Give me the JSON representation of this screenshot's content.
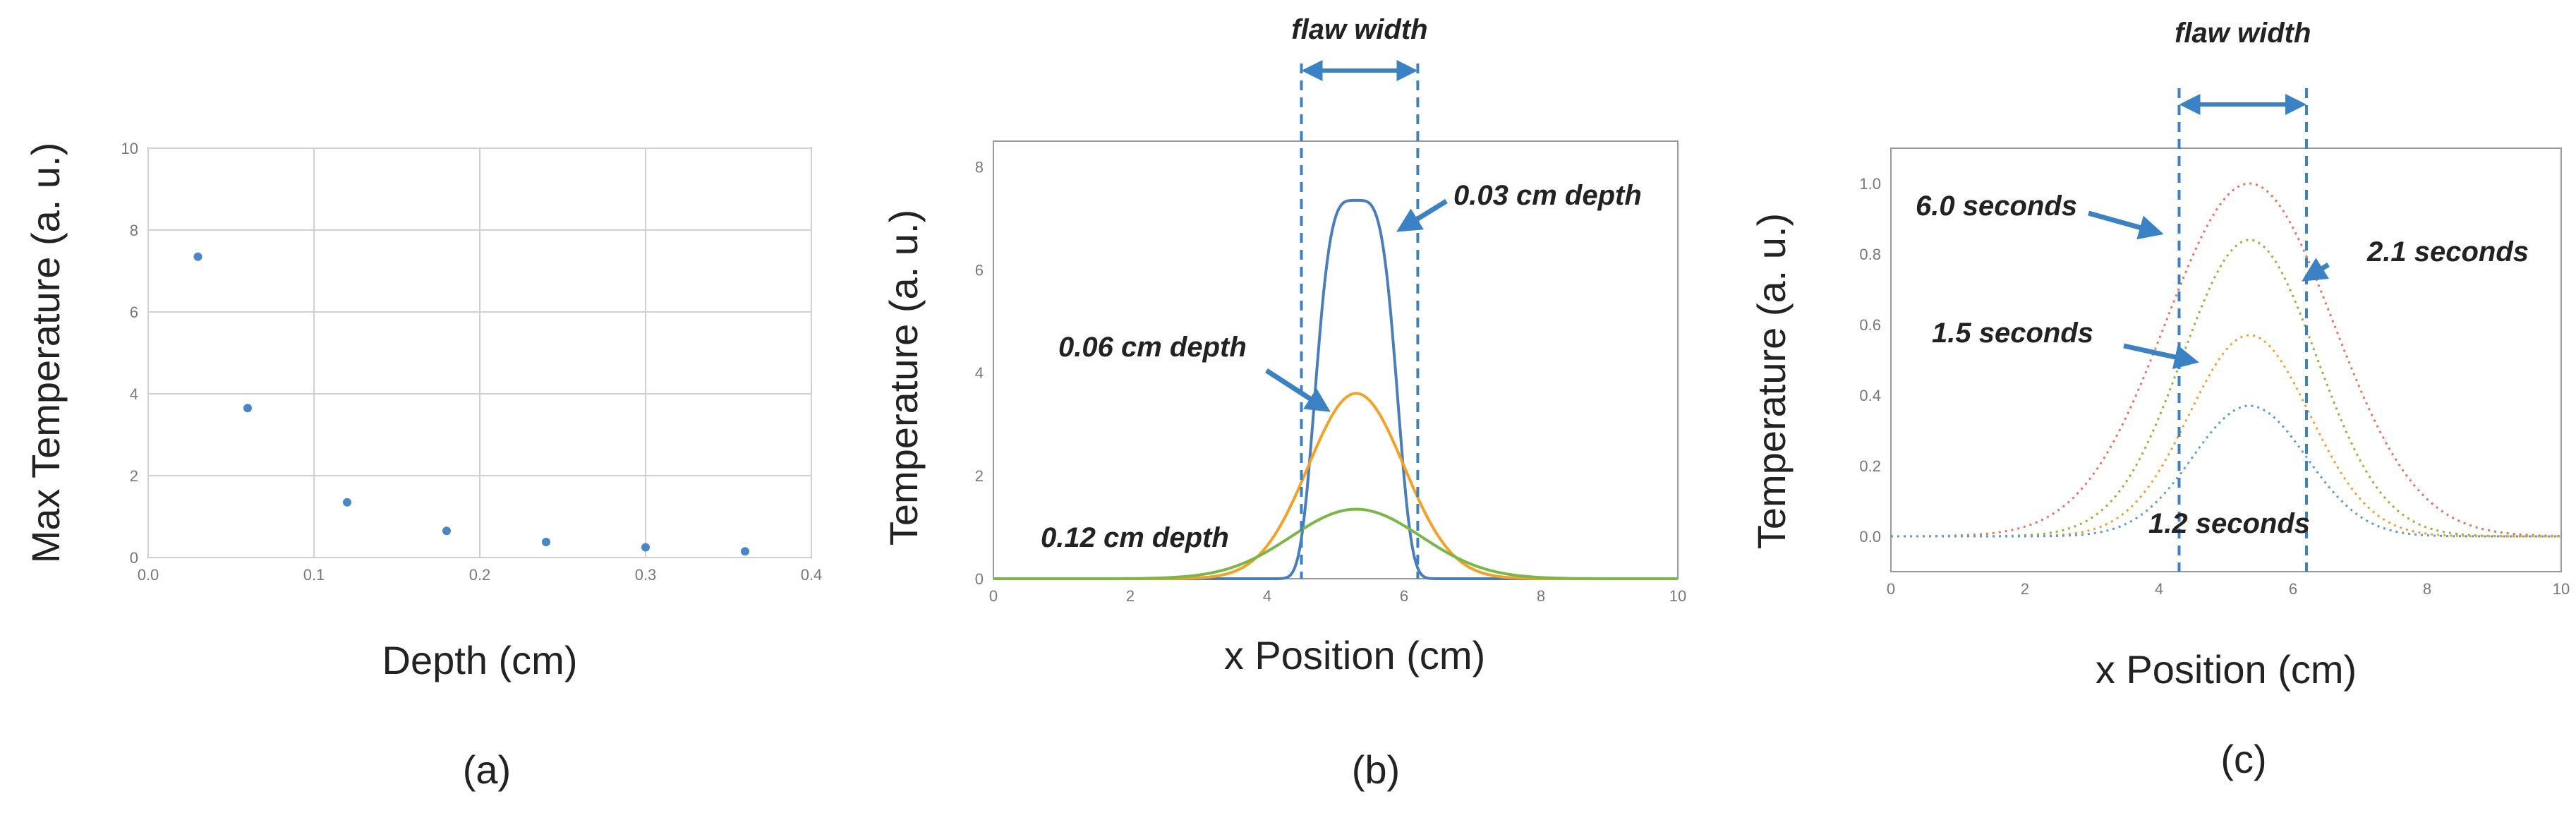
{
  "chart_data": [
    {
      "type": "scatter",
      "panel_label": "(a)",
      "xlabel": "Depth (cm)",
      "ylabel": "Max Temperature (a. u.)",
      "xlim": [
        0,
        0.4
      ],
      "ylim": [
        0,
        10
      ],
      "xticks": [
        "0.0",
        "0.1",
        "0.2",
        "0.3",
        "0.4"
      ],
      "yticks": [
        "0",
        "2",
        "4",
        "6",
        "8",
        "10"
      ],
      "grid": true,
      "color": "#4a86c5",
      "series": [
        {
          "x": [
            0.03,
            0.06,
            0.12,
            0.18,
            0.24,
            0.3,
            0.36
          ],
          "y": [
            7.35,
            3.65,
            1.35,
            0.65,
            0.38,
            0.25,
            0.15
          ]
        }
      ]
    },
    {
      "type": "line",
      "panel_label": "(b)",
      "xlabel": "x Position (cm)",
      "ylabel": "Temperature (a. u.)",
      "xlim": [
        0,
        10
      ],
      "ylim": [
        0,
        8.5
      ],
      "xticks": [
        "0",
        "2",
        "4",
        "6",
        "8",
        "10"
      ],
      "yticks": [
        "0",
        "2",
        "4",
        "6",
        "8"
      ],
      "grid": false,
      "center": 5.3,
      "flaw_width_label": "flaw width",
      "flaw_edges": [
        4.5,
        6.2
      ],
      "series": [
        {
          "label": "0.03 cm depth",
          "peak": 7.35,
          "sigma": 0.55,
          "flat": 4,
          "color": "#4a7ebb"
        },
        {
          "label": "0.06 cm depth",
          "peak": 3.6,
          "sigma": 0.7,
          "flat": 2,
          "color": "#f2a229"
        },
        {
          "label": "0.12 cm depth",
          "peak": 1.35,
          "sigma": 0.95,
          "flat": 2,
          "color": "#7ab648"
        }
      ]
    },
    {
      "type": "line",
      "panel_label": "(c)",
      "xlabel": "x Position (cm)",
      "ylabel": "Temperature (a. u.)",
      "xlim": [
        0,
        10
      ],
      "ylim": [
        -0.1,
        1.1
      ],
      "xticks": [
        "0",
        "2",
        "4",
        "6",
        "8",
        "10"
      ],
      "yticks": [
        "0.0",
        "0.2",
        "0.4",
        "0.6",
        "0.8",
        "1.0"
      ],
      "grid": false,
      "center": 5.35,
      "flaw_width_label": "flaw width",
      "flaw_edges": [
        4.3,
        6.2
      ],
      "series": [
        {
          "label": "6.0 seconds",
          "peak": 1.0,
          "sigma": 1.25,
          "color": "#e8735a"
        },
        {
          "label": "2.1 seconds",
          "peak": 0.84,
          "sigma": 1.0,
          "color": "#8db83a"
        },
        {
          "label": "1.5 seconds",
          "peak": 0.57,
          "sigma": 0.9,
          "color": "#f0a030"
        },
        {
          "label": "1.2 seconds",
          "peak": 0.37,
          "sigma": 0.85,
          "color": "#5b9bd5"
        }
      ]
    }
  ]
}
